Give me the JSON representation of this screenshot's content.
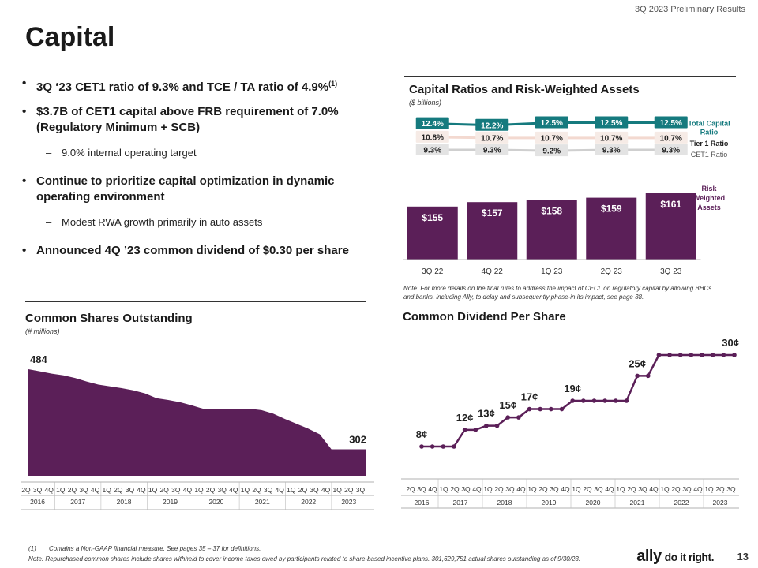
{
  "header": {
    "label": "3Q 2023 Preliminary Results"
  },
  "title": "Capital",
  "bullets": [
    {
      "text": "3Q ‘23 CET1 ratio of 9.3% and TCE / TA ratio of 4.9%",
      "sup": "(1)"
    },
    {
      "text": "$3.7B of CET1 capital above FRB requirement of 7.0% (Regulatory Minimum + SCB)"
    },
    {
      "sub": "9.0% internal operating target"
    },
    {
      "text": "Continue to prioritize capital optimization in dynamic operating environment"
    },
    {
      "sub": "Modest RWA growth primarily in auto assets"
    },
    {
      "text": "Announced 4Q ’23 common dividend of $0.30 per share"
    }
  ],
  "dash": "–",
  "bullet_char": "•",
  "colors": {
    "purple": "#5b1f58",
    "teal": "#157a7e",
    "dark": "#1a1a1a"
  },
  "chart_data": [
    {
      "type": "bar",
      "title": "Capital Ratios and Risk-Weighted Assets",
      "subtitle": "($ billions)",
      "categories": [
        "3Q 22",
        "4Q 22",
        "1Q 23",
        "2Q 23",
        "3Q 23"
      ],
      "rwa": {
        "name": "Risk Weighted Assets",
        "values": [
          155,
          157,
          158,
          159,
          161
        ],
        "labels": [
          "$155",
          "$157",
          "$158",
          "$159",
          "$161"
        ]
      },
      "series": [
        {
          "name": "Total Capital Ratio",
          "values": [
            12.4,
            12.2,
            12.5,
            12.5,
            12.5
          ],
          "labels": [
            "12.4%",
            "12.2%",
            "12.5%",
            "12.5%",
            "12.5%"
          ]
        },
        {
          "name": "Tier 1 Ratio",
          "values": [
            10.8,
            10.7,
            10.7,
            10.7,
            10.7
          ],
          "labels": [
            "10.8%",
            "10.7%",
            "10.7%",
            "10.7%",
            "10.7%"
          ]
        },
        {
          "name": "CET1 Ratio",
          "values": [
            9.3,
            9.3,
            9.2,
            9.3,
            9.3
          ],
          "labels": [
            "9.3%",
            "9.3%",
            "9.2%",
            "9.3%",
            "9.3%"
          ]
        }
      ],
      "legend": {
        "total": [
          "Total Capital",
          "Ratio"
        ],
        "tier1": "Tier 1 Ratio",
        "cet1": "CET1 Ratio",
        "rwa": [
          "Risk",
          "Weighted",
          "Assets"
        ]
      },
      "note": [
        "Note: For more details on the final rules to address the impact of CECL on regulatory capital by allowing BHCs",
        "and banks, including Ally, to delay and subsequently phase-in its impact, see page 38."
      ]
    },
    {
      "type": "area",
      "title": "Common Shares Outstanding",
      "subtitle": "(# millions)",
      "x": [
        "2Q16",
        "3Q16",
        "4Q16",
        "1Q17",
        "2Q17",
        "3Q17",
        "4Q17",
        "1Q18",
        "2Q18",
        "3Q18",
        "4Q18",
        "1Q19",
        "2Q19",
        "3Q19",
        "4Q19",
        "1Q20",
        "2Q20",
        "3Q20",
        "4Q20",
        "1Q21",
        "2Q21",
        "3Q21",
        "4Q21",
        "1Q22",
        "2Q22",
        "3Q22",
        "4Q22",
        "1Q23",
        "2Q23",
        "3Q23"
      ],
      "values": [
        484,
        479,
        474,
        470,
        464,
        456,
        449,
        445,
        441,
        436,
        429,
        418,
        414,
        409,
        402,
        394,
        393,
        393,
        394,
        394,
        391,
        383,
        371,
        360,
        349,
        336,
        302,
        302,
        302,
        302
      ],
      "value_labels": {
        "first": "484",
        "last": "302"
      },
      "tick_labels": [
        "2Q",
        "3Q",
        "4Q",
        "1Q",
        "2Q",
        "3Q",
        "4Q",
        "1Q",
        "2Q",
        "3Q",
        "4Q",
        "1Q",
        "2Q",
        "3Q",
        "4Q",
        "1Q",
        "2Q",
        "3Q",
        "4Q",
        "1Q",
        "2Q",
        "3Q",
        "4Q",
        "1Q",
        "2Q",
        "3Q",
        "4Q",
        "1Q",
        "2Q",
        "3Q"
      ],
      "years": [
        "2016",
        "2017",
        "2018",
        "2019",
        "2020",
        "2021",
        "2022",
        "2023"
      ],
      "ylim": [
        0,
        500
      ]
    },
    {
      "type": "line",
      "title": "Common Dividend Per Share",
      "x": [
        "2Q16",
        "3Q16",
        "4Q16",
        "1Q17",
        "2Q17",
        "3Q17",
        "4Q17",
        "1Q18",
        "2Q18",
        "3Q18",
        "4Q18",
        "1Q19",
        "2Q19",
        "3Q19",
        "4Q19",
        "1Q20",
        "2Q20",
        "3Q20",
        "4Q20",
        "1Q21",
        "2Q21",
        "3Q21",
        "4Q21",
        "1Q22",
        "2Q22",
        "3Q22",
        "4Q22",
        "1Q23",
        "2Q23",
        "3Q23"
      ],
      "values": [
        8,
        8,
        8,
        8,
        12,
        12,
        13,
        13,
        15,
        15,
        17,
        17,
        17,
        17,
        19,
        19,
        19,
        19,
        19,
        19,
        25,
        25,
        30,
        30,
        30,
        30,
        30,
        30,
        30,
        30
      ],
      "annotations": [
        {
          "index": 0,
          "label": "8¢"
        },
        {
          "index": 4,
          "label": "12¢"
        },
        {
          "index": 6,
          "label": "13¢"
        },
        {
          "index": 8,
          "label": "15¢"
        },
        {
          "index": 10,
          "label": "17¢"
        },
        {
          "index": 14,
          "label": "19¢"
        },
        {
          "index": 20,
          "label": "25¢"
        },
        {
          "index": 29,
          "label": "30¢"
        }
      ],
      "tick_labels": [
        "2Q",
        "3Q",
        "4Q",
        "1Q",
        "2Q",
        "3Q",
        "4Q",
        "1Q",
        "2Q",
        "3Q",
        "4Q",
        "1Q",
        "2Q",
        "3Q",
        "4Q",
        "1Q",
        "2Q",
        "3Q",
        "4Q",
        "1Q",
        "2Q",
        "3Q",
        "4Q",
        "1Q",
        "2Q",
        "3Q",
        "4Q",
        "1Q",
        "2Q",
        "3Q"
      ],
      "years": [
        "2016",
        "2017",
        "2018",
        "2019",
        "2020",
        "2021",
        "2022",
        "2023"
      ],
      "ylim": [
        0,
        32
      ]
    }
  ],
  "footnotes": {
    "f1_num": "(1)",
    "f1_text": "Contains a Non-GAAP financial measure. See pages 35 – 37 for definitions.",
    "note": "Note: Repurchased common shares include shares withheld to cover income taxes owed by participants related to share-based incentive plans. 301,629,751 actual shares outstanding as of 9/30/23."
  },
  "brand": {
    "name": "ally",
    "tagline": "do it right."
  },
  "page_number": "13"
}
